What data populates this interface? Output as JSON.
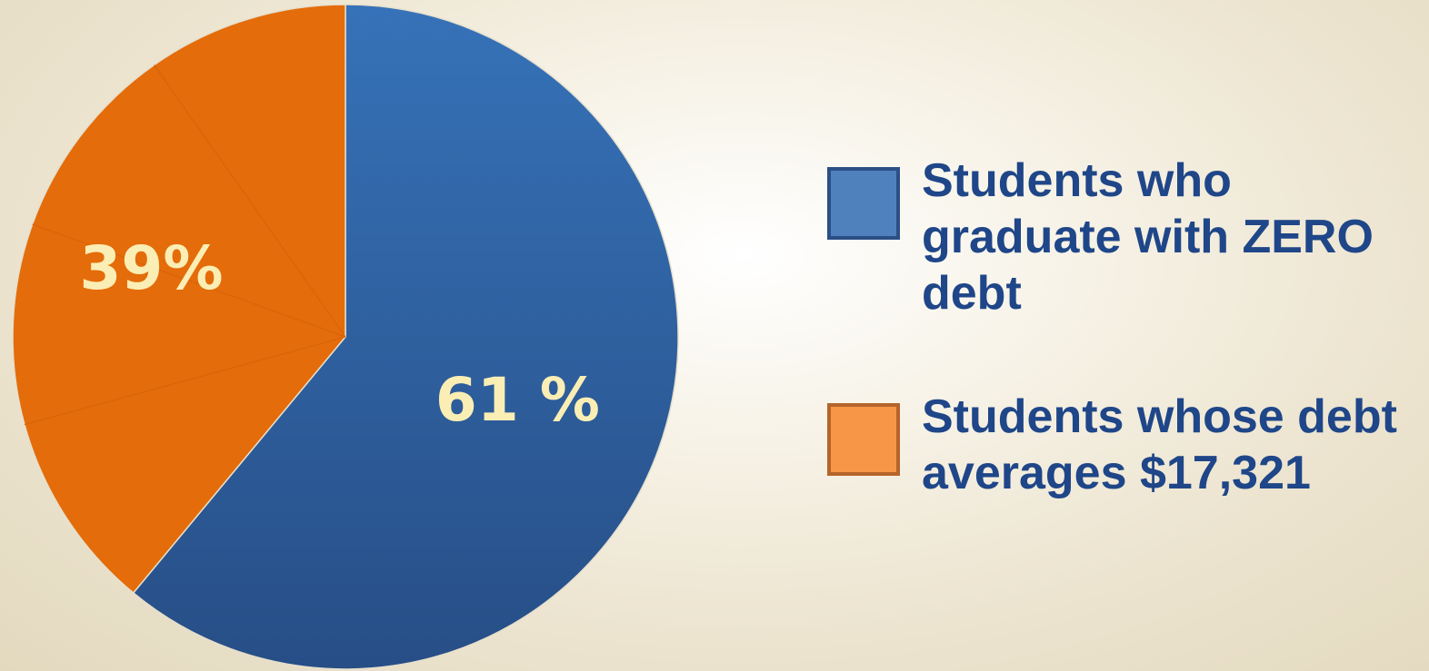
{
  "chart_data": {
    "type": "pie",
    "slices": [
      {
        "label": "Students who graduate with ZERO debt",
        "value": 61,
        "display": "61 %",
        "color": "#2f5f9f",
        "swatch_fill": "#4f81bd",
        "swatch_border": "#2b4f85"
      },
      {
        "label": "Students whose debt averages $17,321",
        "value": 39,
        "display": "39%",
        "color": "#e46c0a",
        "swatch_fill": "#f79646",
        "swatch_border": "#b5642a"
      }
    ],
    "legend_position": "right",
    "label_color": "#fbeeb4",
    "legend_text_color": "#1f4688"
  }
}
